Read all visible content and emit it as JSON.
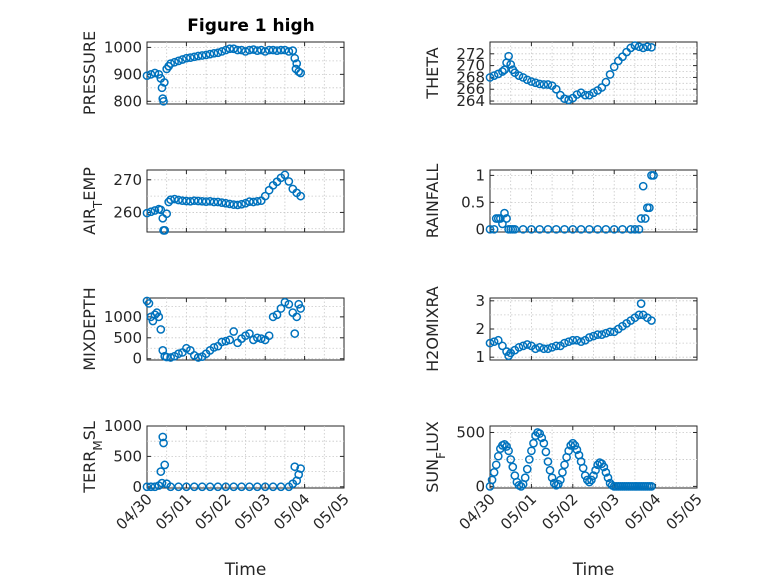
{
  "figure": {
    "title": "Figure 1 high"
  },
  "chart_data": [
    {
      "type": "scatter",
      "title": "Figure 1 high",
      "xlabel": "",
      "ylabel": "PRESSURE",
      "xlim": [
        "04/30",
        "05/05"
      ],
      "ylim": [
        790,
        1020
      ],
      "yticks": [
        800,
        900,
        1000
      ],
      "ytick_labels": [
        "800",
        "900",
        "1000"
      ],
      "xticks": [
        0,
        1,
        2,
        3,
        4,
        5
      ],
      "xtick_labels": [],
      "grid": true,
      "series": [
        {
          "color": "#0072BD",
          "x": [
            0.0,
            0.1,
            0.2,
            0.3,
            0.35,
            0.38,
            0.4,
            0.42,
            0.44,
            0.5,
            0.55,
            0.6,
            0.7,
            0.8,
            0.9,
            1.0,
            1.1,
            1.2,
            1.3,
            1.4,
            1.5,
            1.6,
            1.7,
            1.8,
            1.9,
            2.0,
            2.1,
            2.2,
            2.3,
            2.4,
            2.5,
            2.6,
            2.7,
            2.8,
            2.9,
            3.0,
            3.1,
            3.2,
            3.3,
            3.4,
            3.5,
            3.6,
            3.7,
            3.75,
            3.78,
            3.8,
            3.85,
            3.9
          ],
          "y": [
            895,
            900,
            905,
            900,
            885,
            850,
            810,
            800,
            870,
            920,
            930,
            940,
            945,
            950,
            955,
            960,
            962,
            965,
            968,
            970,
            972,
            975,
            978,
            980,
            985,
            990,
            995,
            995,
            990,
            990,
            985,
            990,
            992,
            988,
            990,
            985,
            990,
            990,
            988,
            990,
            990,
            985,
            988,
            960,
            920,
            940,
            910,
            905
          ]
        }
      ]
    },
    {
      "type": "scatter",
      "xlabel": "",
      "ylabel": "THETA",
      "xlim": [
        "04/30",
        "05/05"
      ],
      "ylim": [
        263.5,
        274
      ],
      "yticks": [
        264,
        266,
        268,
        270,
        272
      ],
      "ytick_labels": [
        "264",
        "266",
        "268",
        "270",
        "272"
      ],
      "xticks": [
        0,
        1,
        2,
        3,
        4,
        5
      ],
      "xtick_labels": [],
      "grid": true,
      "series": [
        {
          "color": "#0072BD",
          "x": [
            0.0,
            0.1,
            0.2,
            0.3,
            0.35,
            0.4,
            0.45,
            0.5,
            0.55,
            0.6,
            0.7,
            0.8,
            0.9,
            1.0,
            1.1,
            1.2,
            1.3,
            1.4,
            1.5,
            1.6,
            1.7,
            1.8,
            1.9,
            2.0,
            2.1,
            2.2,
            2.3,
            2.4,
            2.5,
            2.6,
            2.7,
            2.8,
            2.9,
            3.0,
            3.1,
            3.2,
            3.3,
            3.4,
            3.5,
            3.6,
            3.7,
            3.8,
            3.9
          ],
          "y": [
            268,
            268.3,
            268.6,
            269,
            269.3,
            270.5,
            271.6,
            270.2,
            269.3,
            268.8,
            268.3,
            268,
            267.6,
            267.3,
            267.1,
            266.9,
            266.8,
            266.8,
            266.6,
            266,
            265,
            264.4,
            264.2,
            264.5,
            265.1,
            265.4,
            265,
            265,
            265.4,
            265.8,
            266.3,
            267.2,
            268.5,
            269.8,
            270.8,
            271.5,
            272.3,
            273,
            273.4,
            273.2,
            273,
            273.2,
            273.1
          ]
        }
      ]
    },
    {
      "type": "scatter",
      "xlabel": "",
      "ylabel": "AIR_TEMP",
      "xlim": [
        "04/30",
        "05/05"
      ],
      "ylim": [
        254,
        273
      ],
      "yticks": [
        260,
        270
      ],
      "ytick_labels": [
        "260",
        "270"
      ],
      "xticks": [
        0,
        1,
        2,
        3,
        4,
        5
      ],
      "xtick_labels": [],
      "grid": true,
      "series": [
        {
          "color": "#0072BD",
          "x": [
            0.0,
            0.1,
            0.2,
            0.3,
            0.35,
            0.4,
            0.42,
            0.45,
            0.5,
            0.55,
            0.6,
            0.7,
            0.8,
            0.9,
            1.0,
            1.1,
            1.2,
            1.3,
            1.4,
            1.5,
            1.6,
            1.7,
            1.8,
            1.9,
            2.0,
            2.1,
            2.2,
            2.3,
            2.4,
            2.5,
            2.6,
            2.7,
            2.8,
            2.9,
            3.0,
            3.1,
            3.2,
            3.3,
            3.4,
            3.5,
            3.6,
            3.7,
            3.8,
            3.9
          ],
          "y": [
            259.8,
            260.2,
            260.6,
            261,
            260.8,
            258.2,
            254.5,
            254.5,
            259.6,
            263.2,
            263.9,
            264.1,
            263.8,
            263.6,
            263.5,
            263.4,
            263.6,
            263.5,
            263.4,
            263.3,
            263.4,
            263.2,
            263.2,
            263,
            262.8,
            262.6,
            262.4,
            262.3,
            262.5,
            262.8,
            263.3,
            263.2,
            263.4,
            263.6,
            265,
            266.8,
            268.3,
            269.4,
            270.6,
            271.5,
            269.5,
            267.2,
            266,
            265
          ]
        }
      ]
    },
    {
      "type": "scatter",
      "xlabel": "",
      "ylabel": "RAINFALL",
      "xlim": [
        "04/30",
        "05/05"
      ],
      "ylim": [
        -0.05,
        1.1
      ],
      "yticks": [
        0,
        0.5,
        1
      ],
      "ytick_labels": [
        "0",
        "0.5",
        "1"
      ],
      "xticks": [
        0,
        1,
        2,
        3,
        4,
        5
      ],
      "xtick_labels": [],
      "grid": true,
      "series": [
        {
          "color": "#0072BD",
          "x": [
            0.0,
            0.1,
            0.15,
            0.2,
            0.25,
            0.3,
            0.35,
            0.4,
            0.45,
            0.5,
            0.55,
            0.6,
            0.8,
            1.0,
            1.2,
            1.4,
            1.6,
            1.8,
            2.0,
            2.2,
            2.4,
            2.6,
            2.8,
            3.0,
            3.2,
            3.4,
            3.5,
            3.6,
            3.65,
            3.7,
            3.75,
            3.8,
            3.85,
            3.9,
            3.95
          ],
          "y": [
            0,
            0,
            0.2,
            0.2,
            0.2,
            0.1,
            0.3,
            0.2,
            0,
            0,
            0,
            0,
            0,
            0,
            0,
            0,
            0,
            0,
            0,
            0,
            0,
            0,
            0,
            0,
            0,
            0,
            0,
            0,
            0.2,
            0.8,
            0.2,
            0.4,
            0.4,
            1.0,
            1.0
          ]
        }
      ]
    },
    {
      "type": "scatter",
      "xlabel": "",
      "ylabel": "MIXDEPTH",
      "xlim": [
        "04/30",
        "05/05"
      ],
      "ylim": [
        -30,
        1450
      ],
      "yticks": [
        0,
        500,
        1000
      ],
      "ytick_labels": [
        "0",
        "500",
        "1000"
      ],
      "xticks": [
        0,
        1,
        2,
        3,
        4,
        5
      ],
      "xtick_labels": [],
      "grid": true,
      "series": [
        {
          "color": "#0072BD",
          "x": [
            0.0,
            0.05,
            0.1,
            0.15,
            0.2,
            0.25,
            0.3,
            0.35,
            0.4,
            0.45,
            0.5,
            0.6,
            0.7,
            0.8,
            0.9,
            1.0,
            1.1,
            1.2,
            1.3,
            1.4,
            1.5,
            1.6,
            1.7,
            1.8,
            1.9,
            2.0,
            2.1,
            2.2,
            2.3,
            2.4,
            2.5,
            2.6,
            2.7,
            2.8,
            2.9,
            3.0,
            3.1,
            3.2,
            3.3,
            3.4,
            3.5,
            3.6,
            3.7,
            3.75,
            3.8,
            3.85,
            3.9
          ],
          "y": [
            1380,
            1320,
            1000,
            900,
            1050,
            1100,
            1000,
            700,
            200,
            60,
            40,
            30,
            60,
            120,
            150,
            250,
            200,
            80,
            30,
            50,
            120,
            200,
            270,
            300,
            400,
            420,
            450,
            650,
            380,
            480,
            550,
            600,
            450,
            500,
            480,
            450,
            550,
            1000,
            1050,
            1200,
            1350,
            1300,
            1100,
            600,
            1000,
            1300,
            1200
          ]
        }
      ]
    },
    {
      "type": "scatter",
      "xlabel": "",
      "ylabel": "H2OMIXRA",
      "xlim": [
        "04/30",
        "05/05"
      ],
      "ylim": [
        0.9,
        3.1
      ],
      "yticks": [
        1,
        2,
        3
      ],
      "ytick_labels": [
        "1",
        "2",
        "3"
      ],
      "xticks": [
        0,
        1,
        2,
        3,
        4,
        5
      ],
      "xtick_labels": [],
      "grid": true,
      "series": [
        {
          "color": "#0072BD",
          "x": [
            0.0,
            0.1,
            0.2,
            0.3,
            0.4,
            0.45,
            0.5,
            0.6,
            0.7,
            0.8,
            0.9,
            1.0,
            1.1,
            1.2,
            1.3,
            1.4,
            1.5,
            1.6,
            1.7,
            1.8,
            1.9,
            2.0,
            2.1,
            2.2,
            2.3,
            2.4,
            2.5,
            2.6,
            2.7,
            2.8,
            2.9,
            3.0,
            3.1,
            3.2,
            3.3,
            3.4,
            3.5,
            3.6,
            3.65,
            3.7,
            3.8,
            3.9
          ],
          "y": [
            1.5,
            1.55,
            1.6,
            1.4,
            1.2,
            1.05,
            1.15,
            1.25,
            1.35,
            1.4,
            1.45,
            1.4,
            1.3,
            1.35,
            1.3,
            1.3,
            1.35,
            1.4,
            1.4,
            1.5,
            1.55,
            1.6,
            1.6,
            1.55,
            1.6,
            1.7,
            1.75,
            1.8,
            1.8,
            1.85,
            1.9,
            1.9,
            2.0,
            2.1,
            2.2,
            2.3,
            2.4,
            2.5,
            2.9,
            2.5,
            2.4,
            2.3
          ]
        }
      ]
    },
    {
      "type": "scatter",
      "xlabel": "Time",
      "ylabel": "TERR_MSL",
      "xlim": [
        "04/30",
        "05/05"
      ],
      "ylim": [
        -20,
        1000
      ],
      "yticks": [
        0,
        500,
        1000
      ],
      "ytick_labels": [
        "0",
        "500",
        "1000"
      ],
      "xticks": [
        0,
        1,
        2,
        3,
        4,
        5
      ],
      "xtick_labels": [
        "04/30",
        "05/01",
        "05/02",
        "05/03",
        "05/04",
        "05/05"
      ],
      "grid": true,
      "series": [
        {
          "color": "#0072BD",
          "x": [
            0.0,
            0.1,
            0.2,
            0.3,
            0.35,
            0.38,
            0.4,
            0.42,
            0.45,
            0.5,
            0.6,
            0.8,
            1.0,
            1.2,
            1.4,
            1.6,
            1.8,
            2.0,
            2.2,
            2.4,
            2.6,
            2.8,
            3.0,
            3.2,
            3.4,
            3.6,
            3.7,
            3.75,
            3.8,
            3.85,
            3.9
          ],
          "y": [
            0,
            0,
            0,
            20,
            250,
            60,
            820,
            720,
            360,
            50,
            0,
            0,
            0,
            0,
            0,
            0,
            0,
            0,
            0,
            0,
            0,
            0,
            0,
            0,
            0,
            0,
            50,
            330,
            100,
            200,
            300
          ]
        }
      ]
    },
    {
      "type": "scatter",
      "xlabel": "Time",
      "ylabel": "SUN_FLUX",
      "xlim": [
        "04/30",
        "05/05"
      ],
      "ylim": [
        -15,
        560
      ],
      "yticks": [
        0,
        500
      ],
      "ytick_labels": [
        "0",
        "500"
      ],
      "xticks": [
        0,
        1,
        2,
        3,
        4,
        5
      ],
      "xtick_labels": [
        "04/30",
        "05/01",
        "05/02",
        "05/03",
        "05/04",
        "05/05"
      ],
      "grid": true,
      "series": [
        {
          "color": "#0072BD",
          "x": [
            0.0,
            0.05,
            0.1,
            0.15,
            0.2,
            0.25,
            0.3,
            0.35,
            0.4,
            0.45,
            0.5,
            0.55,
            0.6,
            0.65,
            0.7,
            0.75,
            0.8,
            0.85,
            0.9,
            0.95,
            1.0,
            1.05,
            1.1,
            1.15,
            1.2,
            1.25,
            1.3,
            1.35,
            1.4,
            1.45,
            1.5,
            1.55,
            1.6,
            1.65,
            1.7,
            1.75,
            1.8,
            1.85,
            1.9,
            1.95,
            2.0,
            2.05,
            2.1,
            2.15,
            2.2,
            2.25,
            2.3,
            2.35,
            2.4,
            2.45,
            2.5,
            2.55,
            2.6,
            2.65,
            2.7,
            2.75,
            2.8,
            2.85,
            2.9,
            2.95,
            3.0,
            3.05,
            3.1,
            3.15,
            3.2,
            3.25,
            3.3,
            3.35,
            3.4,
            3.45,
            3.5,
            3.55,
            3.6,
            3.65,
            3.7,
            3.75,
            3.8,
            3.85,
            3.9
          ],
          "y": [
            0,
            60,
            130,
            200,
            280,
            350,
            380,
            390,
            370,
            330,
            250,
            180,
            100,
            40,
            10,
            0,
            20,
            80,
            160,
            250,
            330,
            400,
            470,
            500,
            490,
            450,
            400,
            320,
            230,
            150,
            80,
            30,
            10,
            20,
            60,
            130,
            200,
            270,
            330,
            380,
            400,
            380,
            340,
            290,
            230,
            170,
            100,
            60,
            40,
            60,
            100,
            150,
            200,
            220,
            210,
            180,
            130,
            80,
            30,
            10,
            0,
            0,
            0,
            0,
            0,
            0,
            0,
            0,
            0,
            0,
            0,
            0,
            0,
            0,
            0,
            0,
            0,
            0,
            0
          ]
        }
      ]
    }
  ]
}
